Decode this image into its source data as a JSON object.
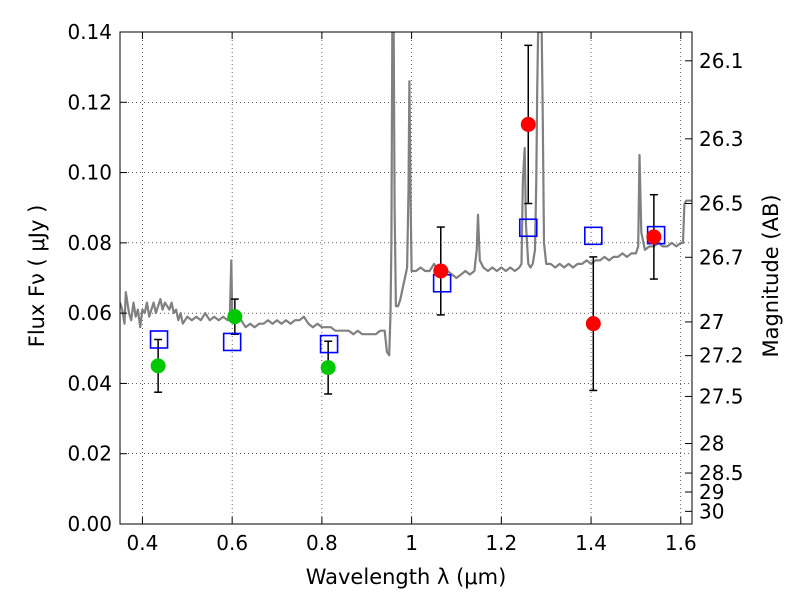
{
  "chart_data": {
    "type": "scatter",
    "xlabel": "Wavelength  λ (μm)",
    "ylabel": "Flux  Fν  ( μJy )",
    "y2label": "Magnitude (AB)",
    "xlim": [
      0.35,
      1.625
    ],
    "ylim": [
      0.0,
      0.14
    ],
    "grid": true,
    "xticks": [
      0.4,
      0.6,
      0.8,
      1.0,
      1.2,
      1.4,
      1.6
    ],
    "xtick_labels": [
      "0.4",
      "0.6",
      "0.8",
      "1",
      "1.2",
      "1.4",
      "1.6"
    ],
    "yticks": [
      0.0,
      0.02,
      0.04,
      0.06,
      0.08,
      0.1,
      0.12,
      0.14
    ],
    "ytick_labels": [
      "0.00",
      "0.02",
      "0.04",
      "0.06",
      "0.08",
      "0.10",
      "0.12",
      "0.14"
    ],
    "y2ticks": [
      {
        "mag": "26.1",
        "flux": 0.1318
      },
      {
        "mag": "26.3",
        "flux": 0.1096
      },
      {
        "mag": "26.5",
        "flux": 0.0912
      },
      {
        "mag": "26.7",
        "flux": 0.0759
      },
      {
        "mag": "27",
        "flux": 0.0575
      },
      {
        "mag": "27.2",
        "flux": 0.0479
      },
      {
        "mag": "27.5",
        "flux": 0.0363
      },
      {
        "mag": "28",
        "flux": 0.0229
      },
      {
        "mag": "28.5",
        "flux": 0.0145
      },
      {
        "mag": "29",
        "flux": 0.0091
      },
      {
        "mag": "30",
        "flux": 0.0036
      }
    ],
    "series": [
      {
        "marker": "circle",
        "color": "#00c800",
        "points": [
          {
            "x": 0.435,
            "y": 0.045,
            "err": 0.0075
          },
          {
            "x": 0.606,
            "y": 0.059,
            "err": 0.005
          },
          {
            "x": 0.814,
            "y": 0.0445,
            "err": 0.0075
          }
        ]
      },
      {
        "marker": "circle",
        "color": "#ff0000",
        "points": [
          {
            "x": 1.065,
            "y": 0.072,
            "err": 0.0125
          },
          {
            "x": 1.26,
            "y": 0.1137,
            "err": 0.0225
          },
          {
            "x": 1.405,
            "y": 0.057,
            "err": 0.019
          },
          {
            "x": 1.54,
            "y": 0.0817,
            "err": 0.012
          }
        ]
      },
      {
        "marker": "open-square",
        "color": "#0000ff",
        "points": [
          {
            "x": 0.437,
            "y": 0.0525
          },
          {
            "x": 0.6,
            "y": 0.0518
          },
          {
            "x": 0.816,
            "y": 0.0512
          },
          {
            "x": 1.068,
            "y": 0.0685
          },
          {
            "x": 1.26,
            "y": 0.0843
          },
          {
            "x": 1.405,
            "y": 0.082
          },
          {
            "x": 1.545,
            "y": 0.0822
          }
        ]
      },
      {
        "marker": "line",
        "color": "#808080",
        "points": [
          [
            0.35,
            0.063
          ],
          [
            0.355,
            0.061
          ],
          [
            0.36,
            0.057
          ],
          [
            0.363,
            0.066
          ],
          [
            0.37,
            0.06
          ],
          [
            0.375,
            0.058
          ],
          [
            0.38,
            0.063
          ],
          [
            0.385,
            0.059
          ],
          [
            0.39,
            0.061
          ],
          [
            0.395,
            0.056
          ],
          [
            0.4,
            0.061
          ],
          [
            0.405,
            0.06
          ],
          [
            0.41,
            0.063
          ],
          [
            0.415,
            0.059
          ],
          [
            0.42,
            0.061
          ],
          [
            0.425,
            0.063
          ],
          [
            0.43,
            0.06
          ],
          [
            0.435,
            0.062
          ],
          [
            0.44,
            0.064
          ],
          [
            0.445,
            0.061
          ],
          [
            0.45,
            0.063
          ],
          [
            0.455,
            0.062
          ],
          [
            0.46,
            0.061
          ],
          [
            0.465,
            0.063
          ],
          [
            0.47,
            0.06
          ],
          [
            0.475,
            0.061
          ],
          [
            0.48,
            0.058
          ],
          [
            0.485,
            0.06
          ],
          [
            0.49,
            0.057
          ],
          [
            0.495,
            0.058
          ],
          [
            0.5,
            0.059
          ],
          [
            0.51,
            0.058
          ],
          [
            0.52,
            0.059
          ],
          [
            0.53,
            0.058
          ],
          [
            0.54,
            0.06
          ],
          [
            0.55,
            0.058
          ],
          [
            0.56,
            0.059
          ],
          [
            0.57,
            0.058
          ],
          [
            0.58,
            0.059
          ],
          [
            0.59,
            0.058
          ],
          [
            0.595,
            0.06
          ],
          [
            0.598,
            0.075
          ],
          [
            0.6,
            0.06
          ],
          [
            0.61,
            0.058
          ],
          [
            0.62,
            0.058
          ],
          [
            0.63,
            0.056
          ],
          [
            0.64,
            0.057
          ],
          [
            0.65,
            0.056
          ],
          [
            0.66,
            0.057
          ],
          [
            0.67,
            0.057
          ],
          [
            0.68,
            0.058
          ],
          [
            0.69,
            0.057
          ],
          [
            0.7,
            0.058
          ],
          [
            0.71,
            0.057
          ],
          [
            0.72,
            0.058
          ],
          [
            0.73,
            0.057
          ],
          [
            0.74,
            0.058
          ],
          [
            0.75,
            0.058
          ],
          [
            0.76,
            0.059
          ],
          [
            0.77,
            0.057
          ],
          [
            0.78,
            0.056
          ],
          [
            0.79,
            0.057
          ],
          [
            0.8,
            0.056
          ],
          [
            0.81,
            0.056
          ],
          [
            0.82,
            0.056
          ],
          [
            0.83,
            0.055
          ],
          [
            0.84,
            0.055
          ],
          [
            0.85,
            0.055
          ],
          [
            0.86,
            0.055
          ],
          [
            0.87,
            0.054
          ],
          [
            0.88,
            0.055
          ],
          [
            0.89,
            0.054
          ],
          [
            0.9,
            0.054
          ],
          [
            0.91,
            0.054
          ],
          [
            0.92,
            0.054
          ],
          [
            0.93,
            0.055
          ],
          [
            0.94,
            0.055
          ],
          [
            0.945,
            0.049
          ],
          [
            0.95,
            0.048
          ],
          [
            0.953,
            0.06
          ],
          [
            0.955,
            0.08
          ],
          [
            0.957,
            0.14
          ],
          [
            0.96,
            0.14
          ],
          [
            0.962,
            0.09
          ],
          [
            0.965,
            0.062
          ],
          [
            0.97,
            0.062
          ],
          [
            0.975,
            0.064
          ],
          [
            0.98,
            0.067
          ],
          [
            0.985,
            0.07
          ],
          [
            0.99,
            0.073
          ],
          [
            0.993,
            0.095
          ],
          [
            0.995,
            0.126
          ],
          [
            0.998,
            0.09
          ],
          [
            1.0,
            0.072
          ],
          [
            1.01,
            0.072
          ],
          [
            1.02,
            0.073
          ],
          [
            1.03,
            0.072
          ],
          [
            1.04,
            0.072
          ],
          [
            1.05,
            0.074
          ],
          [
            1.06,
            0.072
          ],
          [
            1.07,
            0.071
          ],
          [
            1.08,
            0.072
          ],
          [
            1.09,
            0.071
          ],
          [
            1.1,
            0.07
          ],
          [
            1.11,
            0.071
          ],
          [
            1.12,
            0.072
          ],
          [
            1.13,
            0.071
          ],
          [
            1.14,
            0.072
          ],
          [
            1.145,
            0.078
          ],
          [
            1.148,
            0.088
          ],
          [
            1.152,
            0.075
          ],
          [
            1.16,
            0.073
          ],
          [
            1.17,
            0.072
          ],
          [
            1.18,
            0.073
          ],
          [
            1.19,
            0.072
          ],
          [
            1.2,
            0.073
          ],
          [
            1.21,
            0.072
          ],
          [
            1.22,
            0.073
          ],
          [
            1.23,
            0.072
          ],
          [
            1.24,
            0.073
          ],
          [
            1.245,
            0.074
          ],
          [
            1.248,
            0.098
          ],
          [
            1.252,
            0.107
          ],
          [
            1.255,
            0.085
          ],
          [
            1.26,
            0.074
          ],
          [
            1.265,
            0.073
          ],
          [
            1.27,
            0.074
          ],
          [
            1.275,
            0.078
          ],
          [
            1.278,
            0.098
          ],
          [
            1.28,
            0.123
          ],
          [
            1.282,
            0.14
          ],
          [
            1.29,
            0.14
          ],
          [
            1.292,
            0.12
          ],
          [
            1.295,
            0.08
          ],
          [
            1.3,
            0.074
          ],
          [
            1.31,
            0.074
          ],
          [
            1.32,
            0.073
          ],
          [
            1.33,
            0.074
          ],
          [
            1.34,
            0.073
          ],
          [
            1.35,
            0.074
          ],
          [
            1.36,
            0.073
          ],
          [
            1.37,
            0.074
          ],
          [
            1.38,
            0.074
          ],
          [
            1.39,
            0.075
          ],
          [
            1.4,
            0.074
          ],
          [
            1.41,
            0.075
          ],
          [
            1.42,
            0.075
          ],
          [
            1.43,
            0.076
          ],
          [
            1.44,
            0.075
          ],
          [
            1.45,
            0.076
          ],
          [
            1.46,
            0.076
          ],
          [
            1.47,
            0.077
          ],
          [
            1.48,
            0.076
          ],
          [
            1.49,
            0.077
          ],
          [
            1.5,
            0.077
          ],
          [
            1.505,
            0.079
          ],
          [
            1.508,
            0.105
          ],
          [
            1.512,
            0.083
          ],
          [
            1.52,
            0.078
          ],
          [
            1.53,
            0.079
          ],
          [
            1.54,
            0.079
          ],
          [
            1.55,
            0.08
          ],
          [
            1.56,
            0.079
          ],
          [
            1.57,
            0.079
          ],
          [
            1.58,
            0.08
          ],
          [
            1.59,
            0.079
          ],
          [
            1.6,
            0.08
          ],
          [
            1.605,
            0.08
          ],
          [
            1.608,
            0.091
          ],
          [
            1.612,
            0.092
          ],
          [
            1.62,
            0.092
          ],
          [
            1.625,
            0.092
          ]
        ]
      }
    ]
  }
}
